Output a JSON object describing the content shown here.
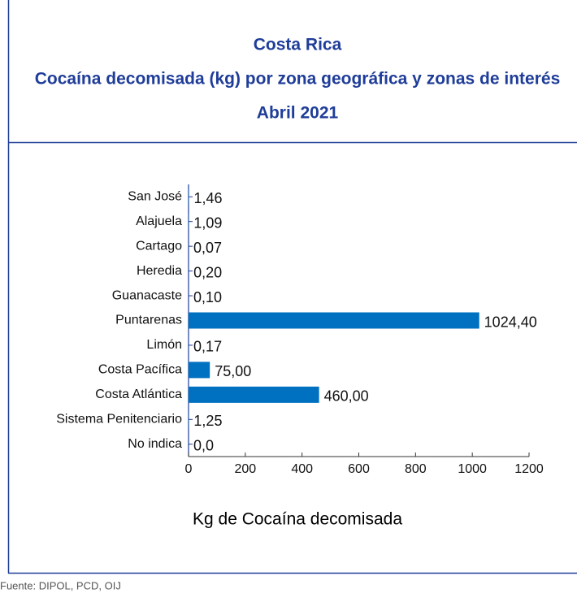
{
  "chart_data": {
    "type": "bar",
    "orientation": "horizontal",
    "title_lines": [
      "Costa Rica",
      "Cocaína decomisada (kg) por zona geográfica y zonas de interés",
      "Abril  2021"
    ],
    "categories": [
      "San José",
      "Alajuela",
      "Cartago",
      "Heredia",
      "Guanacaste",
      "Puntarenas",
      "Limón",
      "Costa Pacífica",
      "Costa Atlántica",
      "Sistema Penitenciario",
      "No indica"
    ],
    "values": [
      1.46,
      1.09,
      0.07,
      0.2,
      0.1,
      1024.4,
      0.17,
      75,
      460,
      1.25,
      0
    ],
    "value_labels": [
      "1,46",
      "1,09",
      "0,07",
      "0,20",
      "0,10",
      "1024,40",
      "0,17",
      "75,00",
      "460,00",
      "1,25",
      "0,0"
    ],
    "color": "#0070c0",
    "xlim": [
      0,
      1200
    ],
    "xticks": [
      0,
      200,
      400,
      600,
      800,
      1000,
      1200
    ],
    "xlabel": "Kg de Cocaína decomisada",
    "source": "Fuente: DIPOL, PCD, OIJ"
  }
}
